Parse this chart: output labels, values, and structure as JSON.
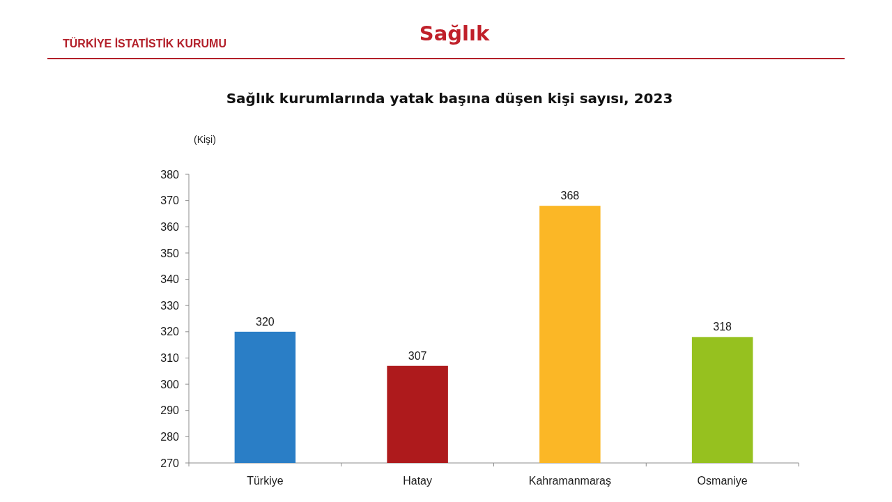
{
  "chart_data": {
    "type": "bar",
    "title": "Sağlık kurumlarında yatak başına düşen kişi sayısı, 2023",
    "annotations": [
      "TÜRKİYE İSTATİSTİK KURUMU",
      "Sağlık"
    ],
    "ylabel": "(Kişi)",
    "categories": [
      "Türkiye",
      "Hatay",
      "Kahramanmaraş",
      "Osmaniye"
    ],
    "values": [
      320,
      307,
      368,
      318
    ],
    "colors": [
      "#2a7ec6",
      "#ae1a1c",
      "#fbb726",
      "#96c11f"
    ],
    "ylim": [
      270,
      380
    ],
    "yticks": [
      270,
      280,
      290,
      300,
      310,
      320,
      330,
      340,
      350,
      360,
      370,
      380
    ],
    "data_labels": true
  }
}
